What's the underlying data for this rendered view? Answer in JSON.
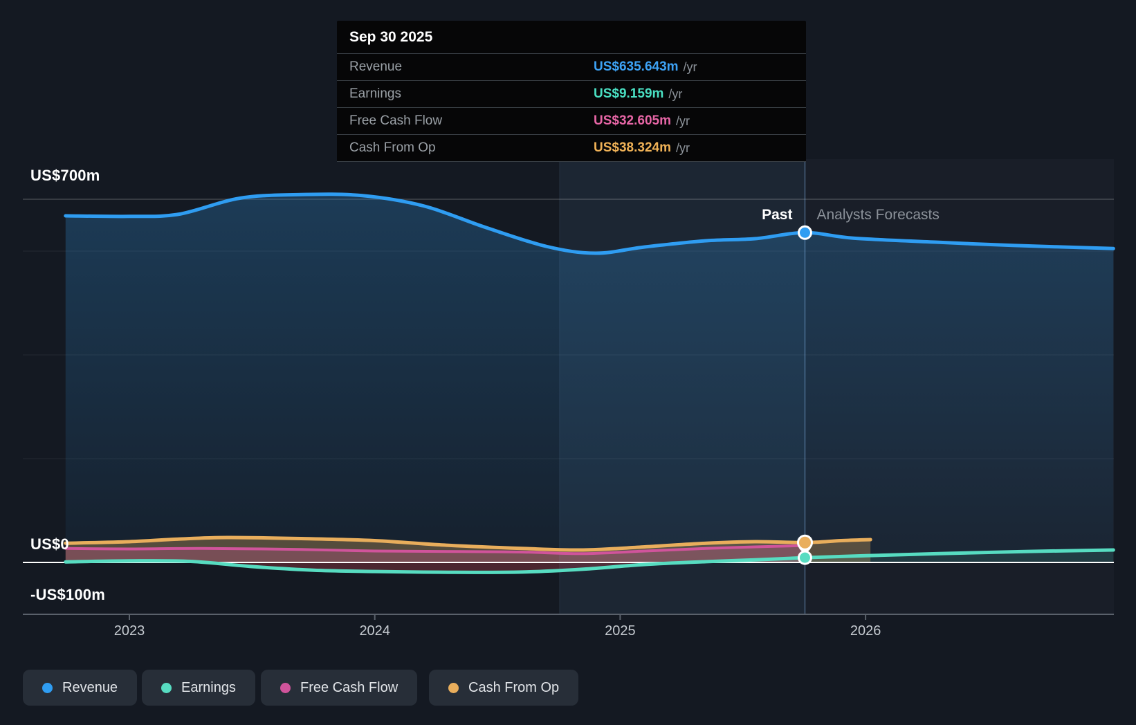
{
  "tooltip": {
    "date": "Sep 30 2025",
    "rows": [
      {
        "label": "Revenue",
        "value": "US$635.643m",
        "suffix": "/yr",
        "color": "#3da2f5"
      },
      {
        "label": "Earnings",
        "value": "US$9.159m",
        "suffix": "/yr",
        "color": "#4ae0c3"
      },
      {
        "label": "Free Cash Flow",
        "value": "US$32.605m",
        "suffix": "/yr",
        "color": "#e766a6"
      },
      {
        "label": "Cash From Op",
        "value": "US$38.324m",
        "suffix": "/yr",
        "color": "#f0b257"
      }
    ]
  },
  "labels": {
    "past": "Past",
    "forecast": "Analysts Forecasts"
  },
  "y_axis": {
    "top": "US$700m",
    "zero": "US$0",
    "neg": "-US$100m"
  },
  "x_axis": {
    "ticks": [
      "2023",
      "2024",
      "2025",
      "2026"
    ]
  },
  "legend": [
    {
      "label": "Revenue",
      "color": "#2f9df2"
    },
    {
      "label": "Earnings",
      "color": "#57dcc1"
    },
    {
      "label": "Free Cash Flow",
      "color": "#d0549b"
    },
    {
      "label": "Cash From Op",
      "color": "#e9ae5c"
    }
  ],
  "chart_data": {
    "type": "area",
    "title": "Past and future earnings and revenue with analyst forecasts",
    "x_unit": "decimal_year",
    "x_range": [
      2022.74,
      2027.01
    ],
    "ylim_millions_usd": [
      -100,
      700
    ],
    "y_tick_labels": [
      "US$700m",
      "US$0",
      "-US$100m"
    ],
    "x_tick_labels": [
      "2023",
      "2024",
      "2025",
      "2026"
    ],
    "grid": true,
    "today": 2025.753,
    "today_date": "Sep 30 2025",
    "highlight_window_start": 2024.753,
    "legend_position": "bottom-left",
    "series": [
      {
        "name": "Revenue",
        "color": "#2f9df2",
        "today_value_m": 635.643,
        "points": [
          [
            2022.74,
            668
          ],
          [
            2023.0,
            667
          ],
          [
            2023.2,
            671
          ],
          [
            2023.45,
            702
          ],
          [
            2023.7,
            709
          ],
          [
            2023.95,
            707
          ],
          [
            2024.2,
            687
          ],
          [
            2024.45,
            646
          ],
          [
            2024.7,
            609
          ],
          [
            2024.9,
            596
          ],
          [
            2025.1,
            608
          ],
          [
            2025.35,
            620
          ],
          [
            2025.55,
            624
          ],
          [
            2025.753,
            635.643
          ],
          [
            2025.95,
            625
          ],
          [
            2026.3,
            617
          ],
          [
            2026.6,
            611
          ],
          [
            2027.01,
            605
          ]
        ]
      },
      {
        "name": "Earnings",
        "color": "#57dcc1",
        "today_value_m": 9.159,
        "points": [
          [
            2022.74,
            1
          ],
          [
            2023.0,
            3
          ],
          [
            2023.25,
            2
          ],
          [
            2023.5,
            -8
          ],
          [
            2023.75,
            -15
          ],
          [
            2024.0,
            -17.5
          ],
          [
            2024.3,
            -19
          ],
          [
            2024.6,
            -18.5
          ],
          [
            2024.85,
            -13
          ],
          [
            2025.1,
            -4
          ],
          [
            2025.35,
            1.5
          ],
          [
            2025.55,
            5
          ],
          [
            2025.753,
            9.159
          ],
          [
            2026.0,
            13
          ],
          [
            2026.3,
            17
          ],
          [
            2026.65,
            21
          ],
          [
            2027.01,
            24
          ]
        ]
      },
      {
        "name": "Free Cash Flow",
        "color": "#d0549b",
        "today_value_m": 32.605,
        "points": [
          [
            2022.74,
            27
          ],
          [
            2023.0,
            26
          ],
          [
            2023.3,
            27
          ],
          [
            2023.7,
            25
          ],
          [
            2024.0,
            22
          ],
          [
            2024.35,
            21
          ],
          [
            2024.6,
            20
          ],
          [
            2024.85,
            17
          ],
          [
            2025.1,
            22
          ],
          [
            2025.35,
            27
          ],
          [
            2025.55,
            30
          ],
          [
            2025.753,
            32.605
          ]
        ]
      },
      {
        "name": "Cash From Op",
        "color": "#e9ae5c",
        "today_value_m": 38.324,
        "points": [
          [
            2022.74,
            37
          ],
          [
            2023.0,
            40
          ],
          [
            2023.2,
            45
          ],
          [
            2023.4,
            48
          ],
          [
            2023.7,
            46
          ],
          [
            2024.0,
            42
          ],
          [
            2024.3,
            33
          ],
          [
            2024.6,
            27
          ],
          [
            2024.85,
            24
          ],
          [
            2025.1,
            30
          ],
          [
            2025.35,
            37
          ],
          [
            2025.55,
            40
          ],
          [
            2025.753,
            38.324
          ],
          [
            2025.9,
            42
          ],
          [
            2026.02,
            44
          ]
        ]
      }
    ]
  }
}
